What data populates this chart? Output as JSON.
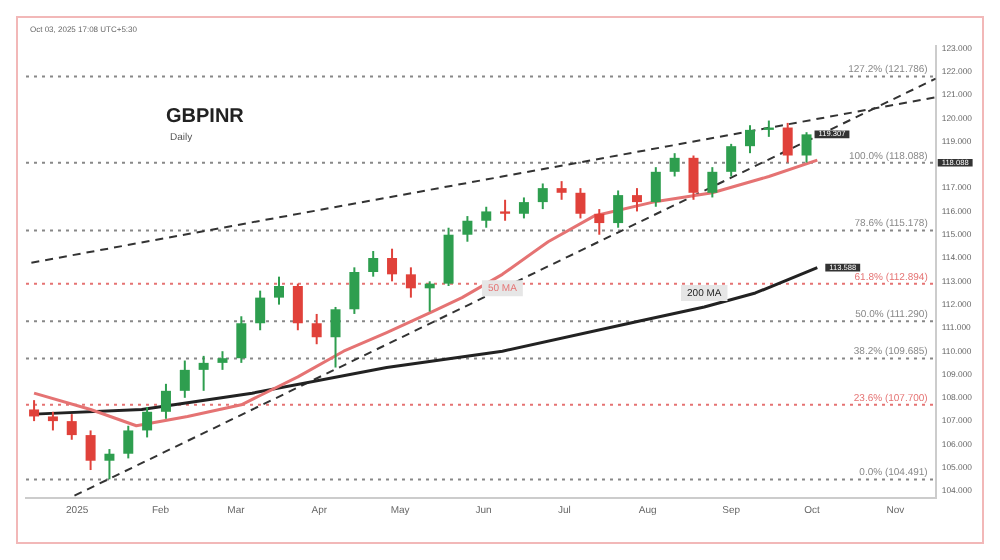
{
  "chart_data": {
    "type": "candlestick",
    "title": "GBPINR",
    "subtitle": "Daily",
    "annotations": [
      "Oct 03, 2025 17:08 UTC+5:30",
      {
        "text": "119.307",
        "x": "2025-09-29",
        "y": 119.307
      },
      {
        "text": "118.088",
        "x": "2025-11-16",
        "y": 118.088
      },
      {
        "text": "113.588",
        "x": "2025-10-03",
        "y": 113.588
      }
    ],
    "x": [
      "2024-12-16",
      "2024-12-23",
      "2024-12-30",
      "2025-01-06",
      "2025-01-13",
      "2025-01-20",
      "2025-01-27",
      "2025-02-03",
      "2025-02-10",
      "2025-02-17",
      "2025-02-24",
      "2025-03-03",
      "2025-03-10",
      "2025-03-17",
      "2025-03-24",
      "2025-03-31",
      "2025-04-07",
      "2025-04-14",
      "2025-04-21",
      "2025-04-28",
      "2025-05-05",
      "2025-05-12",
      "2025-05-19",
      "2025-05-26",
      "2025-06-02",
      "2025-06-09",
      "2025-06-16",
      "2025-06-23",
      "2025-06-30",
      "2025-07-07",
      "2025-07-14",
      "2025-07-21",
      "2025-07-28",
      "2025-08-04",
      "2025-08-11",
      "2025-08-18",
      "2025-08-25",
      "2025-09-01",
      "2025-09-08",
      "2025-09-15",
      "2025-09-22",
      "2025-09-29"
    ],
    "ohlc": [
      [
        107.5,
        107.9,
        107.0,
        107.2
      ],
      [
        107.2,
        107.4,
        106.6,
        107.0
      ],
      [
        107.0,
        107.3,
        106.2,
        106.4
      ],
      [
        106.4,
        106.6,
        104.9,
        105.3
      ],
      [
        105.3,
        105.8,
        104.5,
        105.6
      ],
      [
        105.6,
        106.8,
        105.4,
        106.6
      ],
      [
        106.6,
        107.6,
        106.3,
        107.4
      ],
      [
        107.4,
        108.6,
        107.1,
        108.3
      ],
      [
        108.3,
        109.6,
        108.0,
        109.2
      ],
      [
        109.2,
        109.8,
        108.3,
        109.5
      ],
      [
        109.5,
        110.0,
        109.2,
        109.7
      ],
      [
        109.7,
        111.5,
        109.5,
        111.2
      ],
      [
        111.2,
        112.6,
        110.9,
        112.3
      ],
      [
        112.3,
        113.2,
        112.0,
        112.8
      ],
      [
        112.8,
        112.9,
        110.9,
        111.2
      ],
      [
        111.2,
        111.6,
        110.3,
        110.6
      ],
      [
        110.6,
        111.9,
        109.3,
        111.8
      ],
      [
        111.8,
        113.6,
        111.6,
        113.4
      ],
      [
        113.4,
        114.3,
        113.2,
        114.0
      ],
      [
        114.0,
        114.4,
        113.0,
        113.3
      ],
      [
        113.3,
        113.6,
        112.3,
        112.7
      ],
      [
        112.7,
        113.0,
        111.7,
        112.9
      ],
      [
        112.9,
        115.3,
        112.8,
        115.0
      ],
      [
        115.0,
        115.8,
        114.7,
        115.6
      ],
      [
        115.6,
        116.2,
        115.3,
        116.0
      ],
      [
        116.0,
        116.5,
        115.6,
        115.9
      ],
      [
        115.9,
        116.6,
        115.7,
        116.4
      ],
      [
        116.4,
        117.2,
        116.1,
        117.0
      ],
      [
        117.0,
        117.3,
        116.5,
        116.8
      ],
      [
        116.8,
        117.0,
        115.7,
        115.9
      ],
      [
        115.9,
        116.1,
        115.0,
        115.5
      ],
      [
        115.5,
        116.9,
        115.3,
        116.7
      ],
      [
        116.7,
        117.0,
        116.0,
        116.4
      ],
      [
        116.4,
        117.9,
        116.2,
        117.7
      ],
      [
        117.7,
        118.5,
        117.5,
        118.3
      ],
      [
        118.3,
        118.4,
        116.5,
        116.8
      ],
      [
        116.8,
        117.9,
        116.6,
        117.7
      ],
      [
        117.7,
        118.9,
        117.5,
        118.8
      ],
      [
        118.8,
        119.7,
        118.5,
        119.5
      ],
      [
        119.5,
        119.9,
        119.2,
        119.6
      ],
      [
        119.6,
        119.8,
        118.1,
        118.4
      ],
      [
        118.4,
        119.4,
        118.1,
        119.307
      ]
    ],
    "series": [
      {
        "type": "line",
        "name": "50 MA",
        "color": "#e57373",
        "x": [
          "2024-12-16",
          "2025-01-06",
          "2025-01-23",
          "2025-02-11",
          "2025-03-03",
          "2025-03-10",
          "2025-03-24",
          "2025-04-10",
          "2025-04-26",
          "2025-05-13",
          "2025-05-24",
          "2025-06-08",
          "2025-06-25",
          "2025-07-12",
          "2025-08-03",
          "2025-08-25",
          "2025-09-15",
          "2025-10-03"
        ],
        "values": [
          108.2,
          107.5,
          106.8,
          107.2,
          107.7,
          108.1,
          108.9,
          110.0,
          110.8,
          111.7,
          112.3,
          113.3,
          114.7,
          115.8,
          116.4,
          116.8,
          117.5,
          118.2
        ]
      },
      {
        "type": "line",
        "name": "200 MA",
        "color": "#222222",
        "x": [
          "2024-12-16",
          "2025-01-25",
          "2025-03-07",
          "2025-04-26",
          "2025-06-08",
          "2025-07-29",
          "2025-08-22",
          "2025-09-10",
          "2025-10-03"
        ],
        "values": [
          107.3,
          107.5,
          108.2,
          109.3,
          110.0,
          111.3,
          111.9,
          112.5,
          113.588
        ]
      },
      {
        "type": "line",
        "color": "#333333",
        "line_style": "dashed",
        "x": [
          "2024-12-15",
          "2025-11-16"
        ],
        "values": [
          113.8,
          120.9
        ]
      },
      {
        "type": "line",
        "color": "#333333",
        "line_style": "dashed",
        "x": [
          "2024-12-31",
          "2025-11-16"
        ],
        "values": [
          103.8,
          121.7
        ]
      }
    ],
    "ref_lines": [
      {
        "axis": "y",
        "value": 121.786,
        "label": "127.2% (121.786)",
        "color": "#888888",
        "line_style": "dotted"
      },
      {
        "axis": "y",
        "value": 118.088,
        "label": "100.0% (118.088)",
        "color": "#888888",
        "line_style": "dotted"
      },
      {
        "axis": "y",
        "value": 115.178,
        "label": "78.6% (115.178)",
        "color": "#888888",
        "line_style": "dotted"
      },
      {
        "axis": "y",
        "value": 112.894,
        "label": "61.8% (112.894)",
        "color": "#e57373",
        "line_style": "dotted"
      },
      {
        "axis": "y",
        "value": 111.29,
        "label": "50.0% (111.290)",
        "color": "#888888",
        "line_style": "dotted"
      },
      {
        "axis": "y",
        "value": 109.685,
        "label": "38.2% (109.685)",
        "color": "#888888",
        "line_style": "dotted"
      },
      {
        "axis": "y",
        "value": 107.7,
        "label": "23.6% (107.700)",
        "color": "#e57373",
        "line_style": "dotted"
      },
      {
        "axis": "y",
        "value": 104.491,
        "label": "0.0% (104.491)",
        "color": "#888888",
        "line_style": "dotted"
      }
    ],
    "xlim": [
      "2024-12-13",
      "2025-11-16"
    ],
    "xticks": [
      {
        "value": "2025-01-01",
        "label": "2025"
      },
      {
        "value": "2025-02-01",
        "label": "Feb"
      },
      {
        "value": "2025-03-01",
        "label": "Mar"
      },
      {
        "value": "2025-04-01",
        "label": "Apr"
      },
      {
        "value": "2025-05-01",
        "label": "May"
      },
      {
        "value": "2025-06-01",
        "label": "Jun"
      },
      {
        "value": "2025-07-01",
        "label": "Jul"
      },
      {
        "value": "2025-08-01",
        "label": "Aug"
      },
      {
        "value": "2025-09-01",
        "label": "Sep"
      },
      {
        "value": "2025-10-01",
        "label": "Oct"
      },
      {
        "value": "2025-11-01",
        "label": "Nov"
      }
    ],
    "ylim": [
      103.7,
      123.1
    ],
    "yticks": [
      {
        "value": 104,
        "label": "104.000"
      },
      {
        "value": 105,
        "label": "105.000"
      },
      {
        "value": 106,
        "label": "106.000"
      },
      {
        "value": 107,
        "label": "107.000"
      },
      {
        "value": 108,
        "label": "108.000"
      },
      {
        "value": 109,
        "label": "109.000"
      },
      {
        "value": 110,
        "label": "110.000"
      },
      {
        "value": 111,
        "label": "111.000"
      },
      {
        "value": 112,
        "label": "112.000"
      },
      {
        "value": 113,
        "label": "113.000"
      },
      {
        "value": 114,
        "label": "114.000"
      },
      {
        "value": 115,
        "label": "115.000"
      },
      {
        "value": 116,
        "label": "116.000"
      },
      {
        "value": 117,
        "label": "117.000"
      },
      {
        "value": 118,
        "label": null
      },
      {
        "value": 119,
        "label": "119.000"
      },
      {
        "value": 120,
        "label": "120.000"
      },
      {
        "value": 121,
        "label": "121.000"
      },
      {
        "value": 122,
        "label": "122.000"
      },
      {
        "value": 123,
        "label": "123.000"
      }
    ],
    "grid": false,
    "legend": false
  }
}
